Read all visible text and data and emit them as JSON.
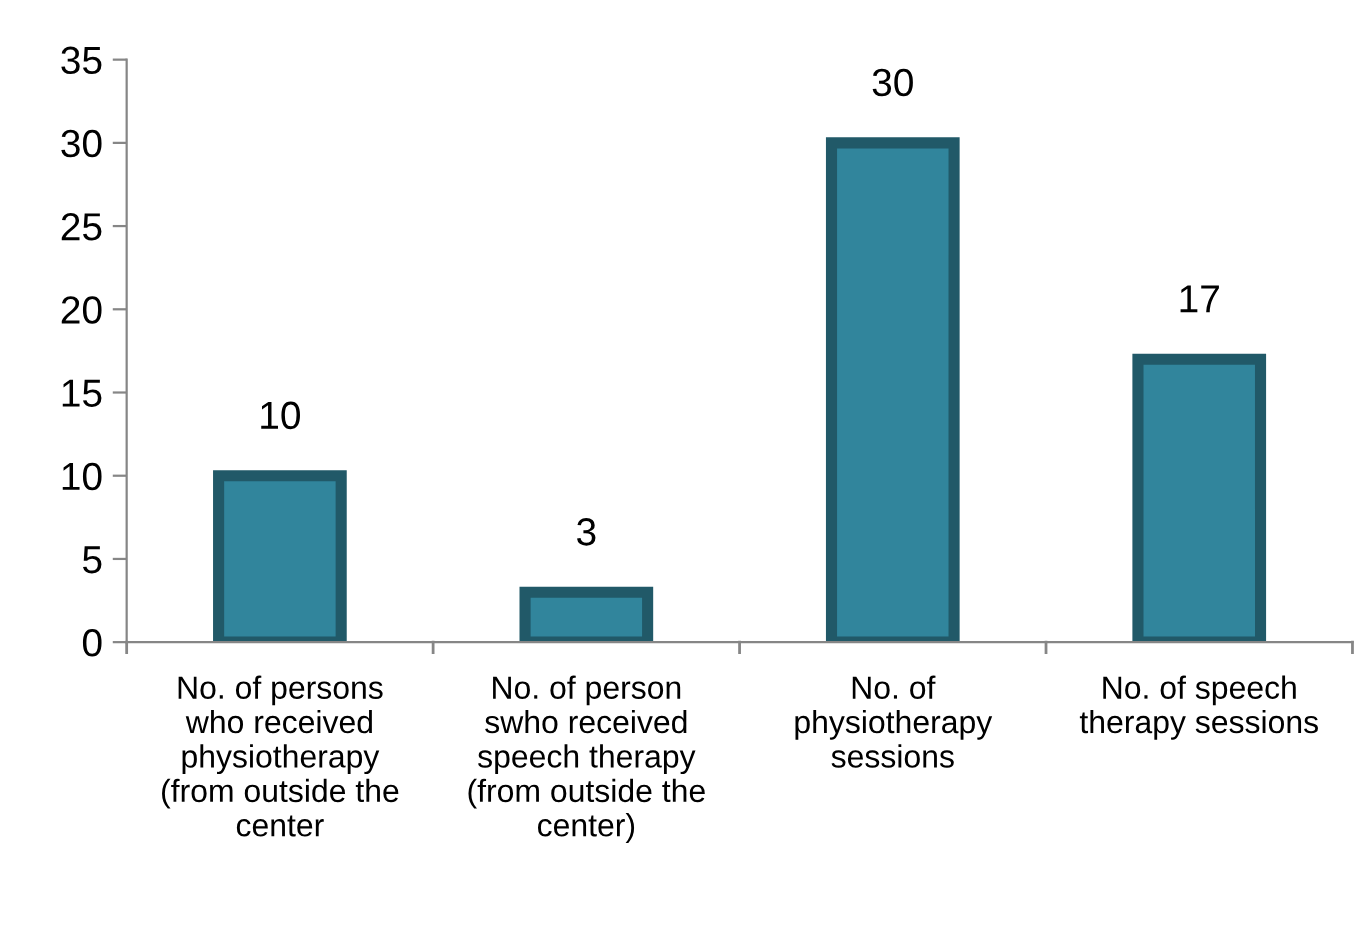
{
  "chart_data": {
    "type": "bar",
    "categories": [
      "No. of persons\nwho received\nphysiotherapy\n(from outside the\ncenter",
      "No. of person\nswho received\nspeech therapy\n(from outside the\ncenter)",
      "No. of\nphysiotherapy\nsessions",
      "No. of speech\ntherapy sessions"
    ],
    "values": [
      10,
      3,
      30,
      17
    ],
    "color": "#31859c",
    "ylim": [
      0,
      35
    ],
    "yticks": [
      0,
      5,
      10,
      15,
      20,
      25,
      30,
      35
    ],
    "data_labels": true,
    "grid": false,
    "legend": false
  }
}
